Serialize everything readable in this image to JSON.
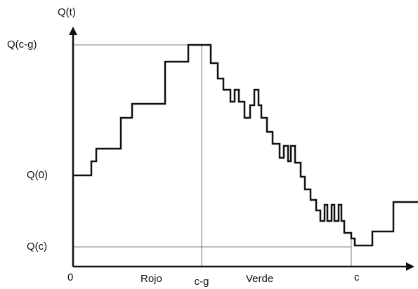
{
  "axes": {
    "y_label": "Q(t)",
    "x_origin": "0"
  },
  "y_levels": [
    "Q(c-g)",
    "Q(0)",
    "Q(c)"
  ],
  "x_labels": {
    "red_phase": "Rojo",
    "switch_time": "c-g",
    "green_phase": "Verde",
    "cycle_end": "c"
  }
}
